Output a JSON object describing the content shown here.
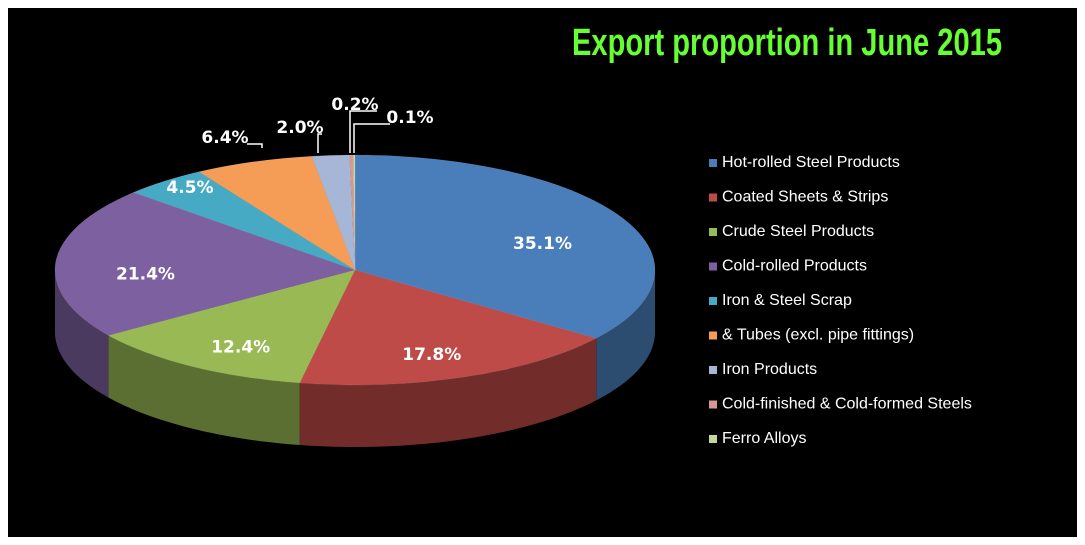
{
  "chart_data": {
    "type": "pie3d",
    "title": "Export proportion in June 2015",
    "categories": [
      "Hot-rolled Steel Products",
      "Coated Sheets & Strips",
      "Crude Steel Products",
      "Cold-rolled Products",
      "Iron & Steel Scrap",
      "& Tubes (excl. pipe fittings)",
      "Iron Products",
      "Cold-finished & Cold-formed Steels",
      "Ferro Alloys"
    ],
    "values": [
      35.1,
      17.8,
      12.4,
      21.4,
      4.5,
      6.4,
      2.0,
      0.2,
      0.1
    ],
    "value_labels": [
      "35.1%",
      "17.8%",
      "12.4%",
      "21.4%",
      "4.5%",
      "6.4%",
      "2.0%",
      "0.2%",
      "0.1%"
    ],
    "colors": [
      "#4a7ebb",
      "#be4b48",
      "#98b954",
      "#7d60a0",
      "#46aac5",
      "#f59d56",
      "#a5b6d6",
      "#d99694",
      "#c3d69b"
    ],
    "legend": "right"
  }
}
